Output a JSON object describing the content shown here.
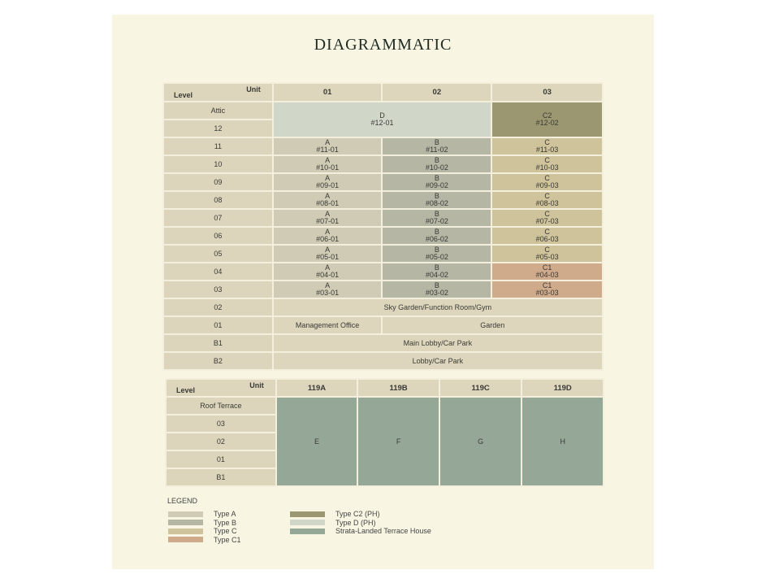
{
  "title": "DIAGRAMMATIC",
  "colors": {
    "A": "#cfcbb4",
    "B": "#b5b6a4",
    "C": "#cec39b",
    "C1": "#d0ab8b",
    "C2": "#9b9770",
    "D": "#d1d7c8",
    "common": "#ddd6bc",
    "terrace": "#95a898"
  },
  "upper": {
    "unit_label": "Unit",
    "level_label": "Level",
    "columns": [
      "01",
      "02",
      "03"
    ],
    "top_rows": {
      "levels": [
        "Attic",
        "12"
      ],
      "d_unit": {
        "type": "D",
        "unit": "#12-01"
      },
      "c2_unit": {
        "type": "C2",
        "unit": "#12-02"
      }
    },
    "unit_rows": [
      {
        "level": "11",
        "cells": [
          {
            "type": "A",
            "unit": "#11-01"
          },
          {
            "type": "B",
            "unit": "#11-02"
          },
          {
            "type": "C",
            "unit": "#11-03"
          }
        ]
      },
      {
        "level": "10",
        "cells": [
          {
            "type": "A",
            "unit": "#10-01"
          },
          {
            "type": "B",
            "unit": "#10-02"
          },
          {
            "type": "C",
            "unit": "#10-03"
          }
        ]
      },
      {
        "level": "09",
        "cells": [
          {
            "type": "A",
            "unit": "#09-01"
          },
          {
            "type": "B",
            "unit": "#09-02"
          },
          {
            "type": "C",
            "unit": "#09-03"
          }
        ]
      },
      {
        "level": "08",
        "cells": [
          {
            "type": "A",
            "unit": "#08-01"
          },
          {
            "type": "B",
            "unit": "#08-02"
          },
          {
            "type": "C",
            "unit": "#08-03"
          }
        ]
      },
      {
        "level": "07",
        "cells": [
          {
            "type": "A",
            "unit": "#07-01"
          },
          {
            "type": "B",
            "unit": "#07-02"
          },
          {
            "type": "C",
            "unit": "#07-03"
          }
        ]
      },
      {
        "level": "06",
        "cells": [
          {
            "type": "A",
            "unit": "#06-01"
          },
          {
            "type": "B",
            "unit": "#06-02"
          },
          {
            "type": "C",
            "unit": "#06-03"
          }
        ]
      },
      {
        "level": "05",
        "cells": [
          {
            "type": "A",
            "unit": "#05-01"
          },
          {
            "type": "B",
            "unit": "#05-02"
          },
          {
            "type": "C",
            "unit": "#05-03"
          }
        ]
      },
      {
        "level": "04",
        "cells": [
          {
            "type": "A",
            "unit": "#04-01"
          },
          {
            "type": "B",
            "unit": "#04-02"
          },
          {
            "type": "C1",
            "unit": "#04-03"
          }
        ]
      },
      {
        "level": "03",
        "cells": [
          {
            "type": "A",
            "unit": "#03-01"
          },
          {
            "type": "B",
            "unit": "#03-02"
          },
          {
            "type": "C1",
            "unit": "#03-03"
          }
        ]
      }
    ],
    "common_rows": [
      {
        "level": "02",
        "spans": [
          {
            "text": "Sky Garden/Function Room/Gym",
            "span": 3
          }
        ]
      },
      {
        "level": "01",
        "spans": [
          {
            "text": "Management Office",
            "span": 1
          },
          {
            "text": "Garden",
            "span": 2
          }
        ]
      },
      {
        "level": "B1",
        "spans": [
          {
            "text": "Main Lobby/Car Park",
            "span": 3
          }
        ]
      },
      {
        "level": "B2",
        "spans": [
          {
            "text": "Lobby/Car Park",
            "span": 3
          }
        ]
      }
    ]
  },
  "lower": {
    "unit_label": "Unit",
    "level_label": "Level",
    "columns": [
      "119A",
      "119B",
      "119C",
      "119D"
    ],
    "levels": [
      "Roof Terrace",
      "03",
      "02",
      "01",
      "B1"
    ],
    "types": [
      "E",
      "F",
      "G",
      "H"
    ]
  },
  "legend": {
    "heading": "LEGEND",
    "items": [
      {
        "label": "Type A",
        "key": "A"
      },
      {
        "label": "Type B",
        "key": "B"
      },
      {
        "label": "Type C",
        "key": "C"
      },
      {
        "label": "Type C1",
        "key": "C1"
      },
      {
        "label": "Type C2 (PH)",
        "key": "C2"
      },
      {
        "label": "Type D (PH)",
        "key": "D"
      },
      {
        "label": "Strata-Landed Terrace House",
        "key": "terrace"
      }
    ]
  }
}
